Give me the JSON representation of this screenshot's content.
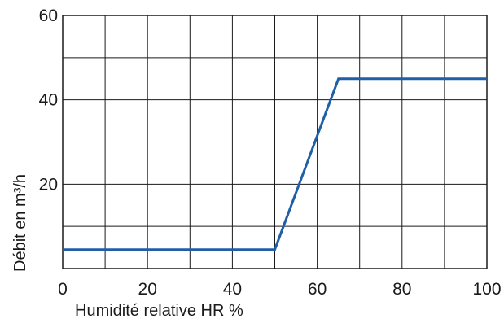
{
  "chart_data": {
    "type": "line",
    "title": "",
    "xlabel": "Humidité relative HR %",
    "ylabel": "Débit en m³/h",
    "xlim": [
      0,
      100
    ],
    "ylim": [
      0,
      60
    ],
    "x_ticks": [
      0,
      20,
      40,
      60,
      80,
      100
    ],
    "y_ticks": [
      20,
      40,
      60
    ],
    "grid": true,
    "grid_step_x": 10,
    "grid_step_y": 10,
    "line_color": "#1f5fa8",
    "series": [
      {
        "x": [
          0,
          50,
          65,
          100
        ],
        "y": [
          4.5,
          4.5,
          45,
          45
        ]
      }
    ]
  }
}
